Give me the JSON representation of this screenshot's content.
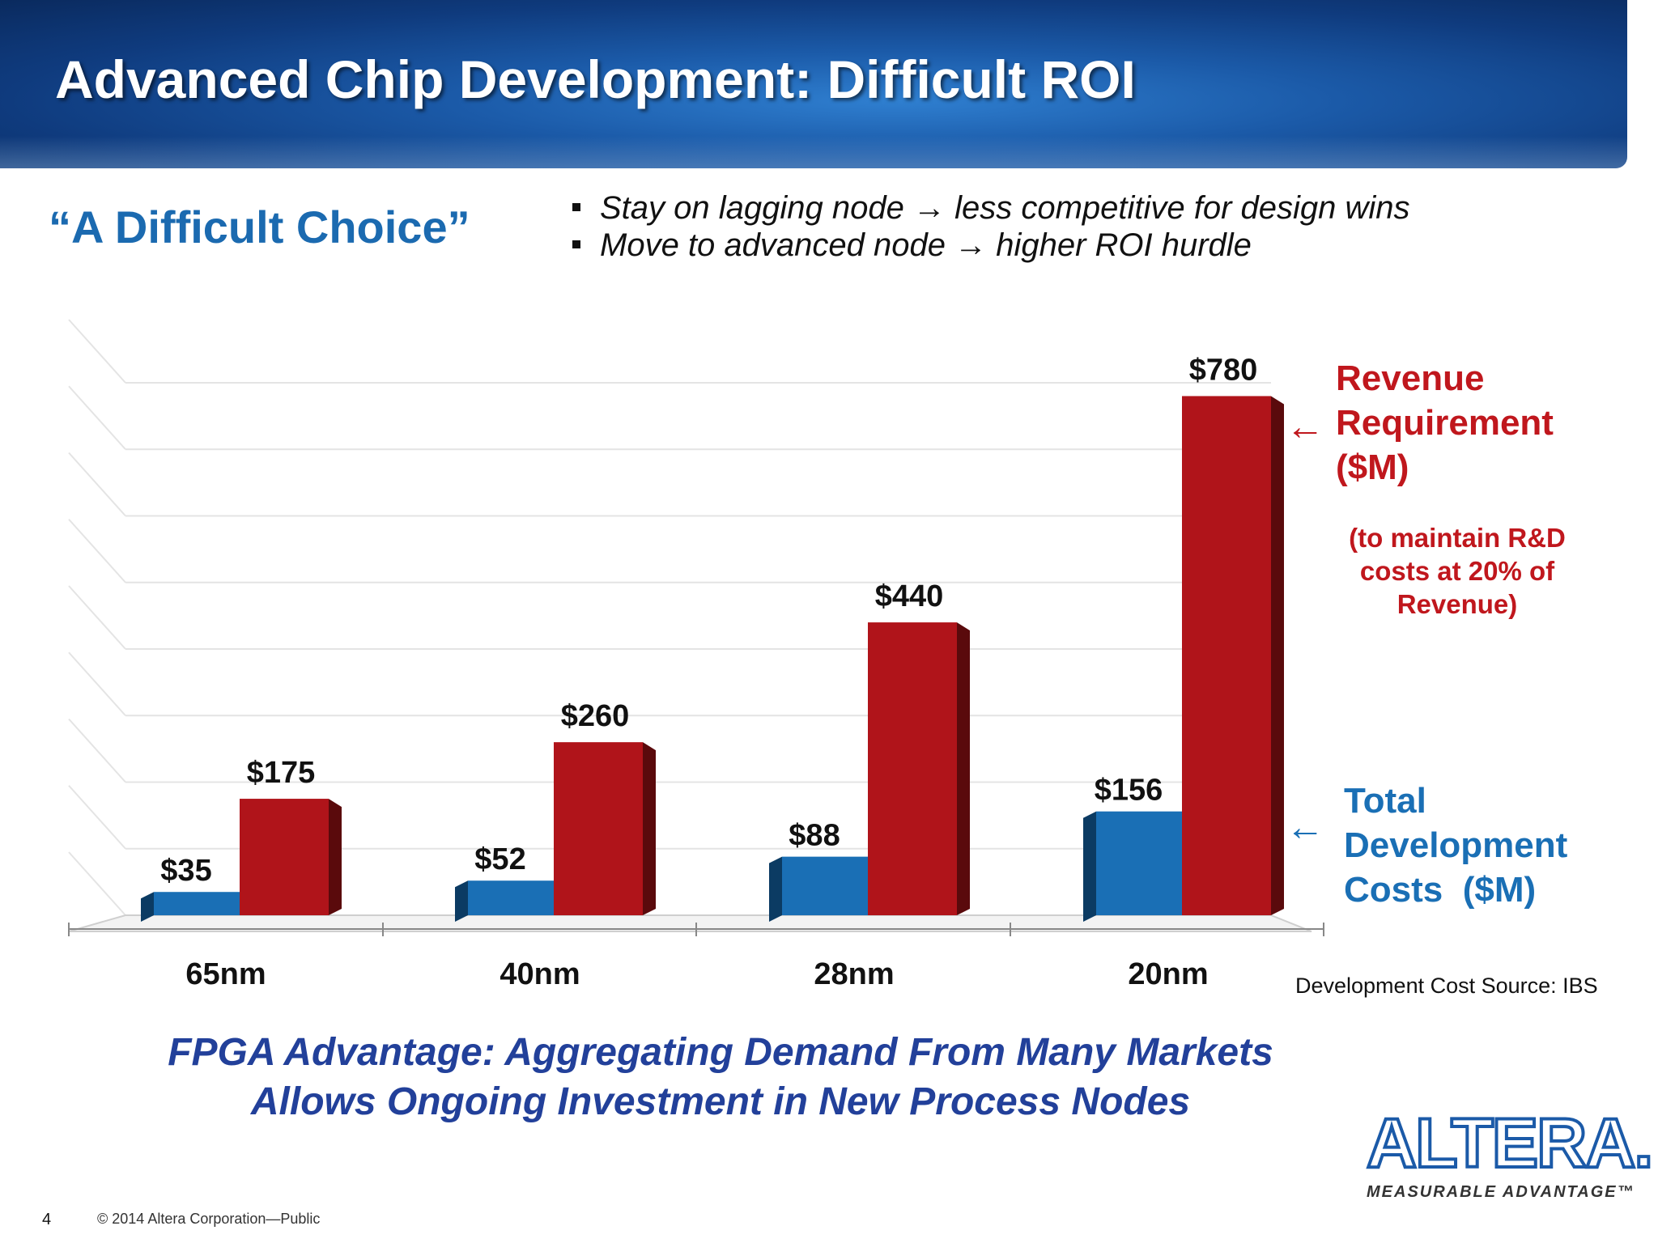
{
  "header": {
    "title": "Advanced Chip Development: Difficult ROI"
  },
  "quote": "“A Difficult Choice”",
  "bullets": [
    "Stay on lagging node → less competitive for design wins",
    "Move to advanced node → higher ROI hurdle"
  ],
  "legend": {
    "revenue_lines": [
      "Revenue",
      "Requirement",
      "($M)"
    ],
    "revenue_note": "(to maintain R&D costs at 20% of Revenue)",
    "dev_lines": [
      "Total",
      "Development",
      "Costs  ($M)"
    ],
    "arrow_glyph": "←",
    "revenue_color": "#c0171d",
    "dev_color": "#1a6fb5"
  },
  "source": "Development Cost Source:  IBS",
  "tagline": [
    "FPGA Advantage:  Aggregating Demand From Many Markets",
    "Allows Ongoing Investment in New Process Nodes"
  ],
  "logo": {
    "word": "ALTERA.",
    "tag": "MEASURABLE ADVANTAGE™"
  },
  "footer": {
    "page": "4",
    "copyright": "© 2014 Altera Corporation—Public"
  },
  "chart_data": {
    "type": "bar",
    "categories": [
      "65nm",
      "40nm",
      "28nm",
      "20nm"
    ],
    "series": [
      {
        "name": "Total Development Costs ($M)",
        "values": [
          35,
          52,
          88,
          156
        ],
        "labels": [
          "$35",
          "$52",
          "$88",
          "$156"
        ],
        "color": "#1a6fb5"
      },
      {
        "name": "Revenue Requirement ($M)",
        "values": [
          175,
          260,
          440,
          780
        ],
        "labels": [
          "$175",
          "$260",
          "$440",
          "$780"
        ],
        "color": "#b0141a"
      }
    ],
    "ylim": [
      0,
      800
    ],
    "grid": true,
    "legend_position": "right"
  }
}
